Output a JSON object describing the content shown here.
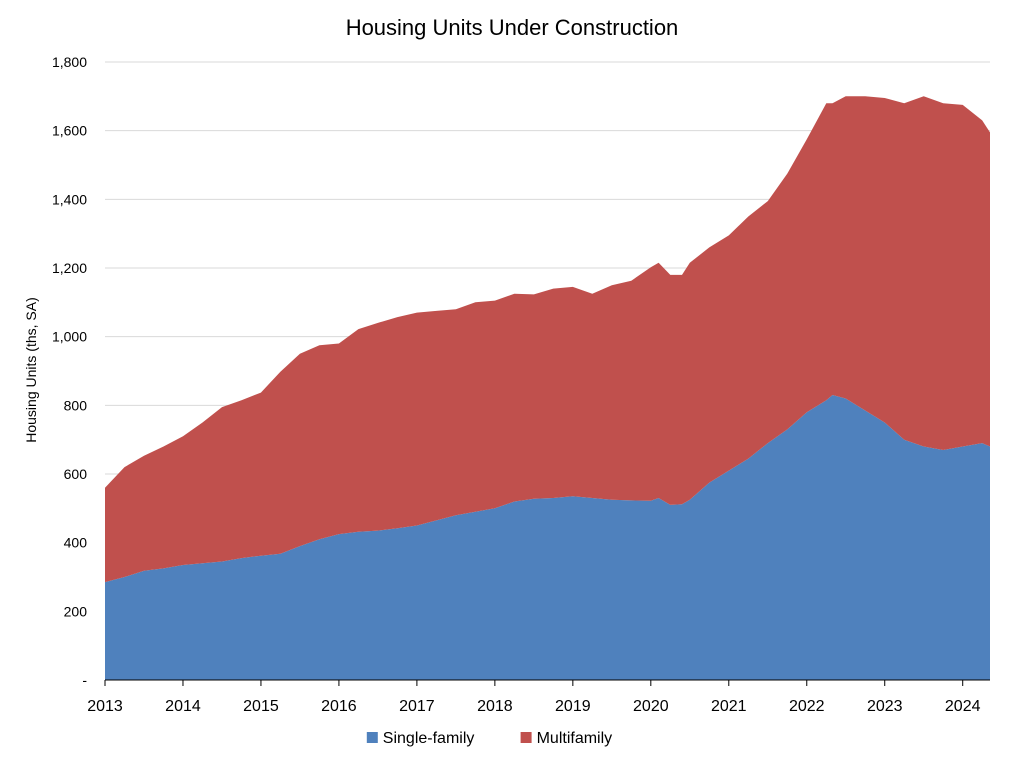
{
  "chart_data": {
    "type": "area",
    "stacked": true,
    "title": "Housing Units Under Construction",
    "ylabel": "Housing Units (ths, SA)",
    "xlabel": "",
    "ylim": [
      0,
      1800
    ],
    "xlim": [
      2013.0,
      2024.35
    ],
    "x_ticks": [
      {
        "value": 2013,
        "label": "2013"
      },
      {
        "value": 2014,
        "label": "2014"
      },
      {
        "value": 2015,
        "label": "2015"
      },
      {
        "value": 2016,
        "label": "2016"
      },
      {
        "value": 2017,
        "label": "2017"
      },
      {
        "value": 2018,
        "label": "2018"
      },
      {
        "value": 2019,
        "label": "2019"
      },
      {
        "value": 2020,
        "label": "2020"
      },
      {
        "value": 2021,
        "label": "2021"
      },
      {
        "value": 2022,
        "label": "2022"
      },
      {
        "value": 2023,
        "label": "2023"
      },
      {
        "value": 2024,
        "label": "2024"
      }
    ],
    "y_ticks": [
      {
        "value": 0,
        "label": "-"
      },
      {
        "value": 200,
        "label": "200"
      },
      {
        "value": 400,
        "label": "400"
      },
      {
        "value": 600,
        "label": "600"
      },
      {
        "value": 800,
        "label": "800"
      },
      {
        "value": 1000,
        "label": "1,000"
      },
      {
        "value": 1200,
        "label": "1,200"
      },
      {
        "value": 1400,
        "label": "1,400"
      },
      {
        "value": 1600,
        "label": "1,600"
      },
      {
        "value": 1800,
        "label": "1,800"
      }
    ],
    "grid": true,
    "legend_position": "bottom",
    "x": [
      2013.0,
      2013.25,
      2013.5,
      2013.75,
      2014.0,
      2014.25,
      2014.5,
      2014.75,
      2015.0,
      2015.25,
      2015.5,
      2015.75,
      2016.0,
      2016.25,
      2016.5,
      2016.75,
      2017.0,
      2017.25,
      2017.5,
      2017.75,
      2018.0,
      2018.25,
      2018.5,
      2018.75,
      2019.0,
      2019.25,
      2019.5,
      2019.75,
      2020.0,
      2020.1,
      2020.25,
      2020.4,
      2020.5,
      2020.75,
      2021.0,
      2021.25,
      2021.5,
      2021.75,
      2022.0,
      2022.25,
      2022.33,
      2022.5,
      2022.75,
      2023.0,
      2023.25,
      2023.5,
      2023.75,
      2024.0,
      2024.25,
      2024.35
    ],
    "series": [
      {
        "name": "Single-family",
        "color": "#4f81bd",
        "values": [
          285,
          300,
          318,
          325,
          335,
          340,
          345,
          355,
          362,
          368,
          390,
          410,
          425,
          432,
          435,
          442,
          450,
          465,
          480,
          490,
          500,
          520,
          528,
          530,
          535,
          530,
          525,
          523,
          522,
          530,
          510,
          512,
          525,
          575,
          610,
          645,
          690,
          730,
          780,
          815,
          830,
          820,
          785,
          750,
          700,
          680,
          670,
          680,
          690,
          680
        ]
      },
      {
        "name": "Multifamily",
        "color": "#c0504d",
        "values": [
          275,
          320,
          335,
          355,
          375,
          410,
          450,
          460,
          475,
          530,
          560,
          565,
          555,
          590,
          605,
          615,
          620,
          610,
          600,
          610,
          605,
          605,
          595,
          610,
          610,
          595,
          625,
          640,
          680,
          685,
          670,
          668,
          690,
          685,
          685,
          705,
          705,
          745,
          795,
          865,
          850,
          880,
          915,
          945,
          980,
          1020,
          1010,
          995,
          940,
          915
        ]
      }
    ]
  }
}
